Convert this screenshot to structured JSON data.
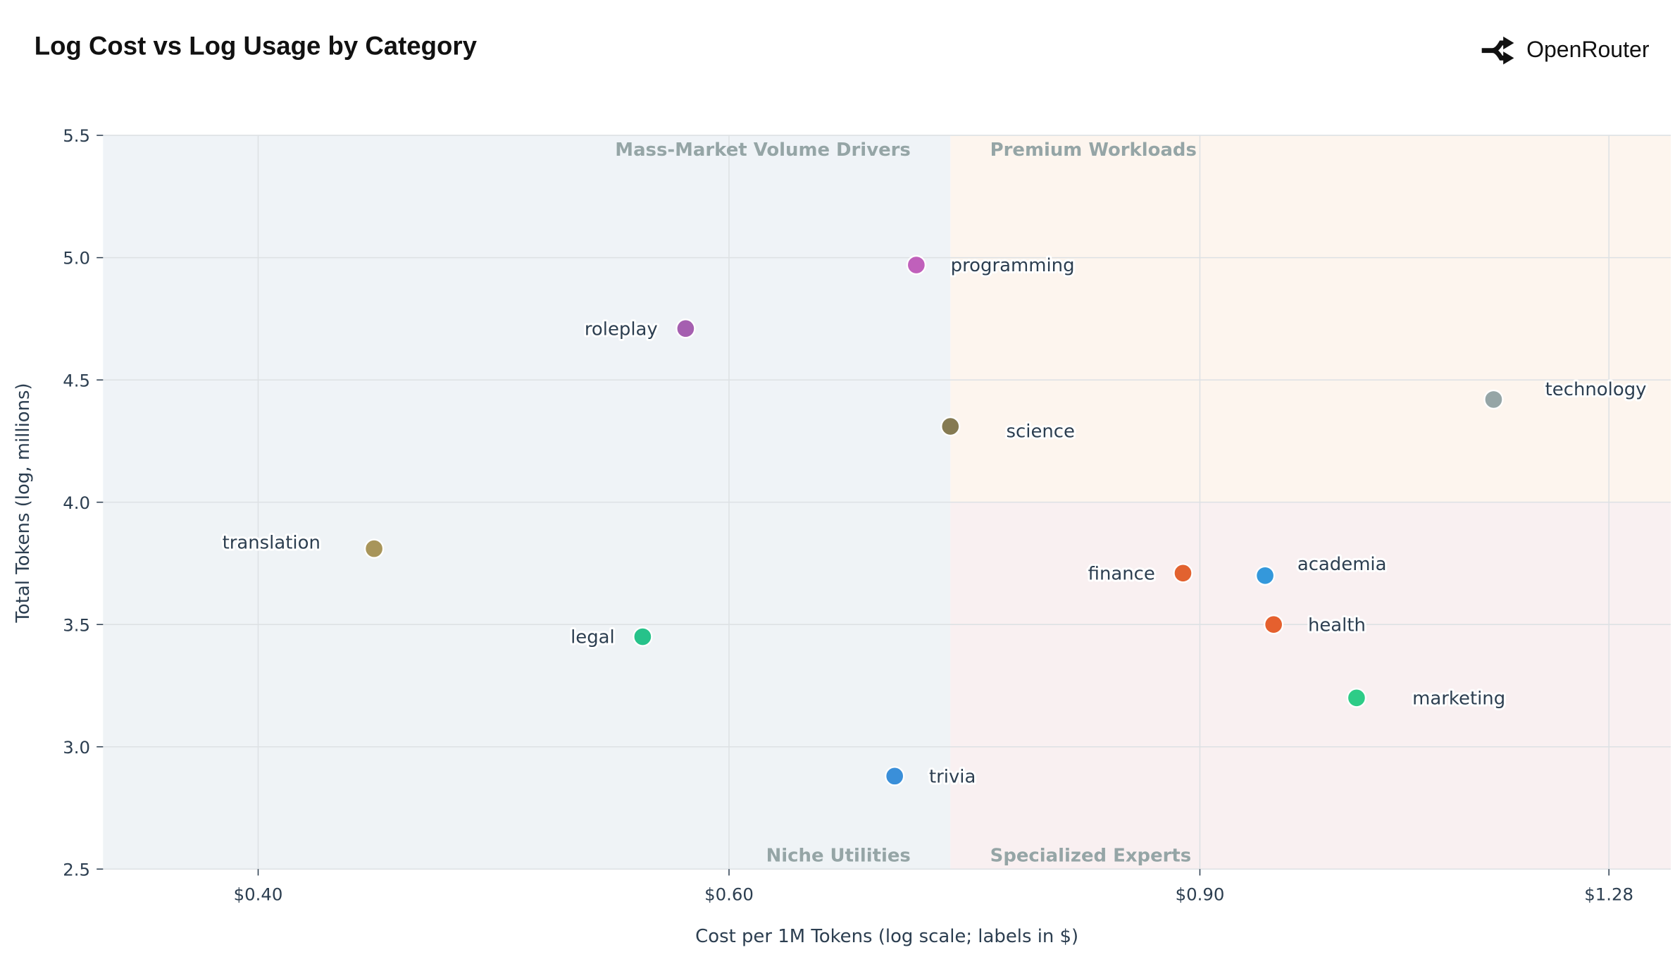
{
  "brand": {
    "name": "OpenRouter",
    "icon": "openrouter-logo-icon"
  },
  "chart_data": {
    "type": "scatter",
    "title": "Log Cost vs Log Usage by Category",
    "xlabel": "Cost per 1M Tokens (log scale; labels in $)",
    "ylabel": "Total Tokens (log, millions)",
    "x_scale": "log",
    "xlim": [
      0.35,
      1.35
    ],
    "ylim": [
      2.5,
      5.5
    ],
    "x_ticks": [
      {
        "value": 0.4,
        "label": "$0.40"
      },
      {
        "value": 0.6,
        "label": "$0.60"
      },
      {
        "value": 0.9,
        "label": "$0.90"
      },
      {
        "value": 1.28,
        "label": "$1.28"
      }
    ],
    "y_ticks": [
      {
        "value": 2.5,
        "label": "2.5"
      },
      {
        "value": 3.0,
        "label": "3.0"
      },
      {
        "value": 3.5,
        "label": "3.5"
      },
      {
        "value": 4.0,
        "label": "4.0"
      },
      {
        "value": 4.5,
        "label": "4.5"
      },
      {
        "value": 5.0,
        "label": "5.0"
      },
      {
        "value": 5.5,
        "label": "5.5"
      }
    ],
    "grid": true,
    "quadrant_split": {
      "x": 0.726,
      "y": 4.0
    },
    "quadrants": [
      {
        "label": "Mass-Market Volume Drivers",
        "position": "top-left",
        "color": "#eff3f7"
      },
      {
        "label": "Premium Workloads",
        "position": "top-right",
        "color": "#fdf5ee"
      },
      {
        "label": "Niche Utilities",
        "position": "bottom-left",
        "color": "#eff3f6"
      },
      {
        "label": "Specialized Experts",
        "position": "bottom-right",
        "color": "#f9f0f1"
      }
    ],
    "points": [
      {
        "label": "programming",
        "x": 0.705,
        "y": 4.97,
        "color": "#c060bb",
        "label_side": "right"
      },
      {
        "label": "roleplay",
        "x": 0.578,
        "y": 4.71,
        "color": "#a55fb0",
        "label_side": "left"
      },
      {
        "label": "science",
        "x": 0.726,
        "y": 4.31,
        "color": "#857a52",
        "label_side": "right"
      },
      {
        "label": "technology",
        "x": 1.159,
        "y": 4.42,
        "color": "#95a5a6",
        "label_side": "right-up"
      },
      {
        "label": "translation",
        "x": 0.442,
        "y": 3.81,
        "color": "#a8955a",
        "label_side": "left-up"
      },
      {
        "label": "finance",
        "x": 0.887,
        "y": 3.71,
        "color": "#e2622f",
        "label_side": "left"
      },
      {
        "label": "academia",
        "x": 0.952,
        "y": 3.7,
        "color": "#3498db",
        "label_side": "right-up"
      },
      {
        "label": "health",
        "x": 0.959,
        "y": 3.5,
        "color": "#e5602e",
        "label_side": "right"
      },
      {
        "label": "marketing",
        "x": 1.03,
        "y": 3.2,
        "color": "#2ecc87",
        "label_side": "right"
      },
      {
        "label": "legal",
        "x": 0.557,
        "y": 3.45,
        "color": "#26c28a",
        "label_side": "left"
      },
      {
        "label": "trivia",
        "x": 0.692,
        "y": 2.88,
        "color": "#3a8fd9",
        "label_side": "right"
      }
    ]
  }
}
